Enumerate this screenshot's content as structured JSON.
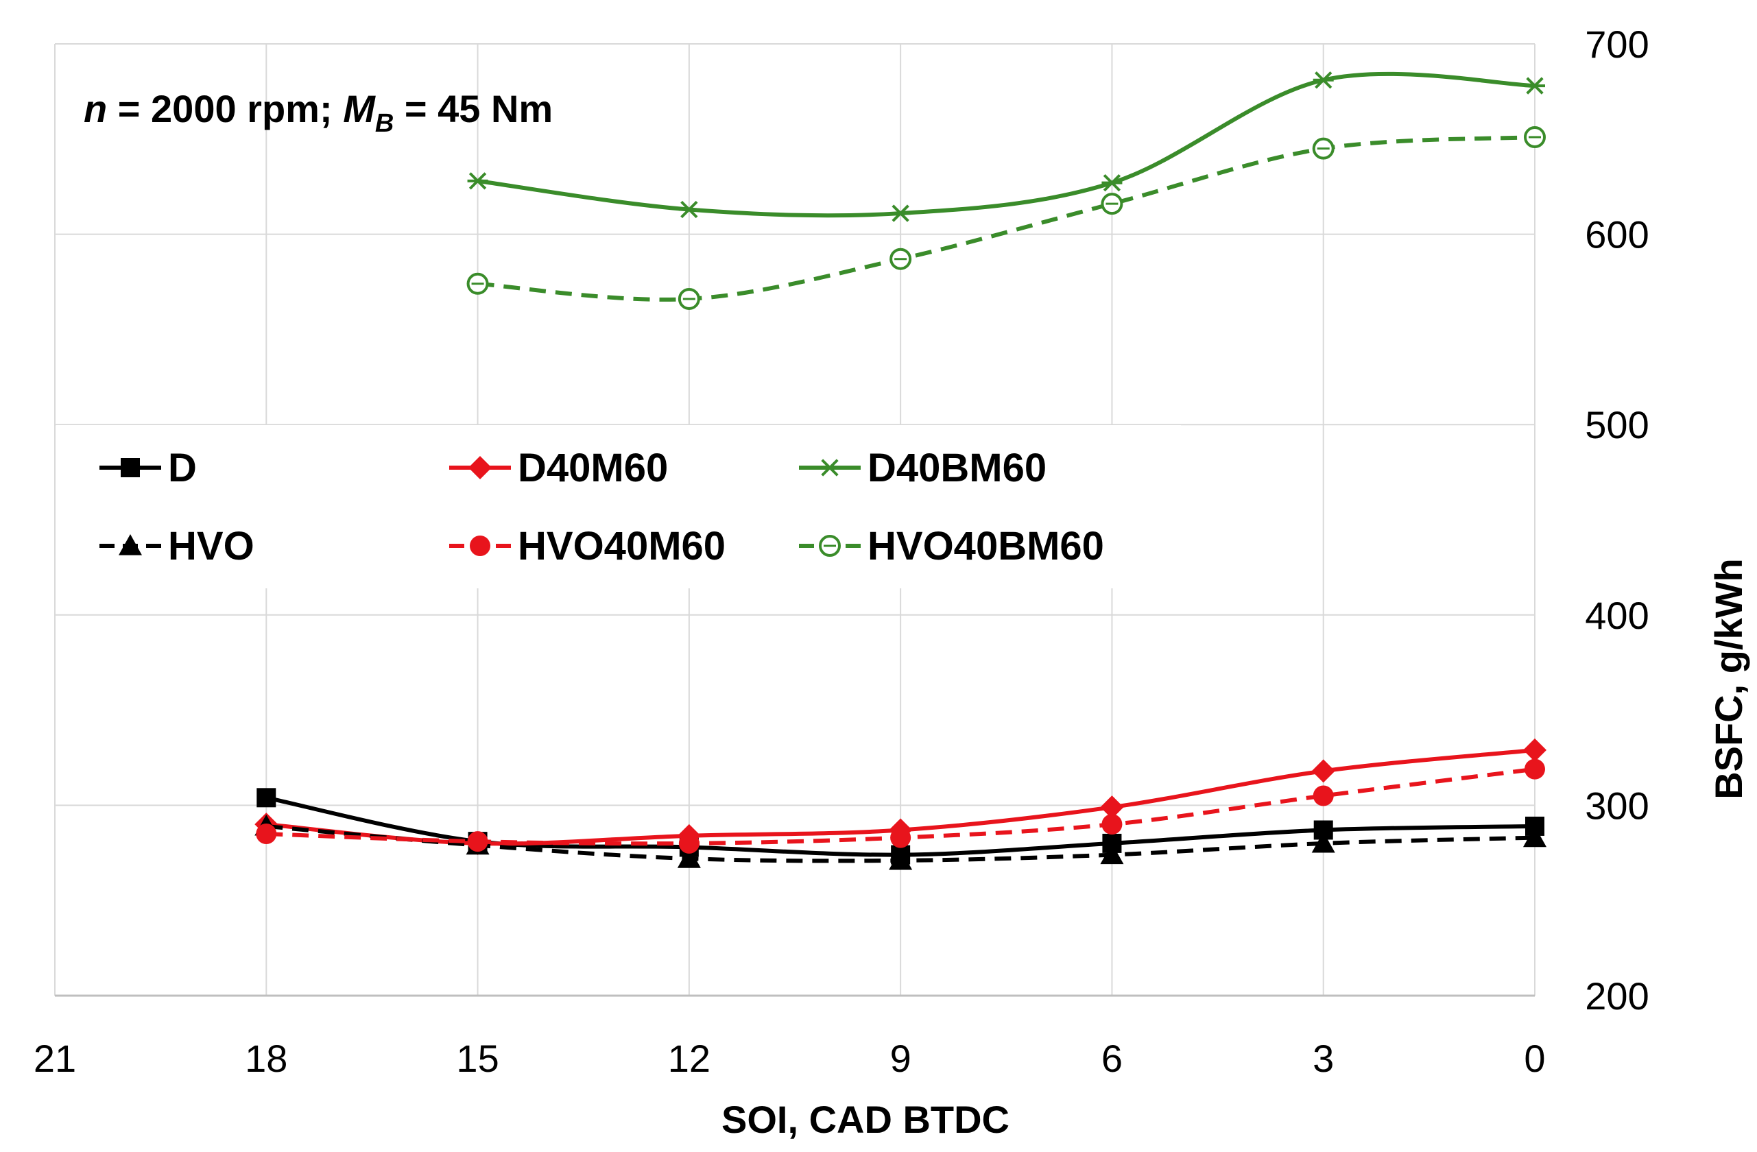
{
  "chart_data": {
    "type": "line",
    "title": "",
    "annotation": {
      "n_symbol": "n",
      "n_text": " = 2000 rpm; ",
      "m_symbol": "M",
      "m_sub": "B",
      "m_text": " = 45 Nm"
    },
    "xlabel": "SOI,  CAD BTDC",
    "ylabel": "BSFC, g/kWh",
    "xlim": [
      21,
      0
    ],
    "ylim": [
      200,
      700
    ],
    "xticks": [
      "21",
      "18",
      "15",
      "12",
      "9",
      "6",
      "3",
      "0"
    ],
    "yticks": [
      "200",
      "300",
      "400",
      "500",
      "600",
      "700"
    ],
    "grid": true,
    "legend_position": "center-left",
    "series": [
      {
        "name": "D",
        "color": "#000000",
        "dashed": false,
        "marker": "square",
        "x": [
          18,
          15,
          12,
          9,
          6,
          3,
          0
        ],
        "y": [
          304,
          281,
          278,
          274,
          280,
          287,
          289
        ]
      },
      {
        "name": "D40M60",
        "color": "#e8141c",
        "dashed": false,
        "marker": "diamond",
        "x": [
          18,
          15,
          12,
          9,
          6,
          3,
          0
        ],
        "y": [
          290,
          280,
          284,
          287,
          299,
          318,
          329
        ]
      },
      {
        "name": "D40BM60",
        "color": "#3a8c2a",
        "dashed": false,
        "marker": "star",
        "x": [
          15,
          12,
          9,
          6,
          3,
          0
        ],
        "y": [
          628,
          613,
          611,
          627,
          681,
          678
        ]
      },
      {
        "name": "HVO",
        "color": "#000000",
        "dashed": true,
        "marker": "triangle",
        "x": [
          18,
          15,
          12,
          9,
          6,
          3,
          0
        ],
        "y": [
          289,
          279,
          272,
          271,
          274,
          280,
          283
        ]
      },
      {
        "name": "HVO40M60",
        "color": "#e8141c",
        "dashed": true,
        "marker": "circle",
        "x": [
          18,
          15,
          12,
          9,
          6,
          3,
          0
        ],
        "y": [
          285,
          281,
          280,
          283,
          290,
          305,
          319
        ]
      },
      {
        "name": "HVO40BM60",
        "color": "#3a8c2a",
        "dashed": true,
        "marker": "open-circle",
        "x": [
          15,
          12,
          9,
          6,
          3,
          0
        ],
        "y": [
          574,
          566,
          587,
          616,
          645,
          651
        ]
      }
    ]
  }
}
